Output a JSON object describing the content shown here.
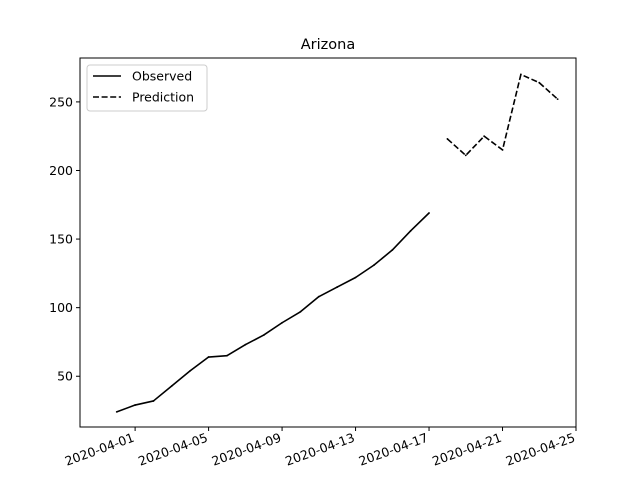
{
  "chart_data": {
    "type": "line",
    "title": "Arizona",
    "xlabel": "",
    "ylabel": "",
    "x_tick_labels": [
      "2020-04-01",
      "2020-04-05",
      "2020-04-09",
      "2020-04-13",
      "2020-04-17",
      "2020-04-21",
      "2020-04-25"
    ],
    "y_tick_labels": [
      "50",
      "100",
      "150",
      "200",
      "250"
    ],
    "y_ticks": [
      50,
      100,
      150,
      200,
      250
    ],
    "xlim": [
      "2020-03-29",
      "2020-04-25"
    ],
    "ylim": [
      13,
      282
    ],
    "grid": false,
    "legend_position": "top-left",
    "series": [
      {
        "name": "Observed",
        "style": "solid",
        "color": "#000000",
        "x": [
          "2020-03-31",
          "2020-04-01",
          "2020-04-02",
          "2020-04-03",
          "2020-04-04",
          "2020-04-05",
          "2020-04-06",
          "2020-04-07",
          "2020-04-08",
          "2020-04-09",
          "2020-04-10",
          "2020-04-11",
          "2020-04-12",
          "2020-04-13",
          "2020-04-14",
          "2020-04-15",
          "2020-04-16",
          "2020-04-17"
        ],
        "values": [
          24,
          29,
          32,
          43,
          54,
          64,
          65,
          73,
          80,
          89,
          97,
          108,
          115,
          122,
          131,
          142,
          156,
          169
        ]
      },
      {
        "name": "Prediction",
        "style": "dashed",
        "color": "#000000",
        "x": [
          "2020-04-18",
          "2020-04-19",
          "2020-04-20",
          "2020-04-21",
          "2020-04-22",
          "2020-04-23",
          "2020-04-24"
        ],
        "values": [
          223,
          211,
          225,
          215,
          270,
          264,
          252
        ]
      }
    ]
  }
}
